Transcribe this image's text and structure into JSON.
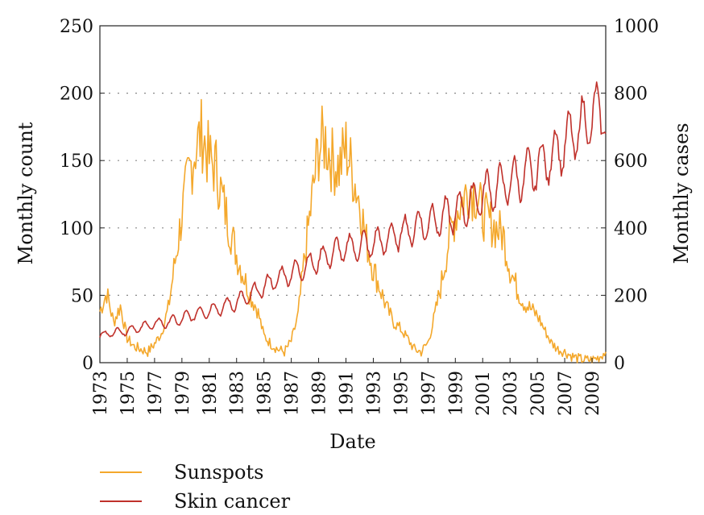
{
  "chart_data": {
    "type": "line",
    "xlabel": "Date",
    "ylabel": "Monthly count",
    "y2label": "Monthly cases",
    "xlim": [
      1973,
      2010
    ],
    "ylim": [
      0,
      250
    ],
    "y2lim": [
      0,
      1000
    ],
    "xticks": [
      "1973",
      "1975",
      "1977",
      "1979",
      "1981",
      "1983",
      "1985",
      "1987",
      "1989",
      "1991",
      "1993",
      "1995",
      "1997",
      "1999",
      "2001",
      "2003",
      "2005",
      "2007",
      "2009"
    ],
    "yticks": [
      "0",
      "50",
      "100",
      "150",
      "200",
      "250"
    ],
    "y2ticks": [
      "0",
      "200",
      "400",
      "600",
      "800",
      "1000"
    ],
    "grid": "horizontal dotted",
    "legend_position": "below",
    "series": [
      {
        "name": "Sunspots",
        "axis": "left",
        "color": "#f4a82c",
        "x": [
          1973.0,
          1973.5,
          1974.0,
          1974.5,
          1975.0,
          1975.5,
          1976.0,
          1976.5,
          1977.0,
          1977.5,
          1978.0,
          1978.5,
          1979.0,
          1979.5,
          1980.0,
          1980.5,
          1981.0,
          1981.5,
          1982.0,
          1982.5,
          1983.0,
          1983.5,
          1984.0,
          1984.5,
          1985.0,
          1985.5,
          1986.0,
          1986.5,
          1987.0,
          1987.5,
          1988.0,
          1988.5,
          1989.0,
          1989.5,
          1990.0,
          1990.5,
          1991.0,
          1991.5,
          1992.0,
          1992.5,
          1993.0,
          1993.5,
          1994.0,
          1994.5,
          1995.0,
          1995.5,
          1996.0,
          1996.5,
          1997.0,
          1997.5,
          1998.0,
          1998.5,
          1999.0,
          1999.5,
          2000.0,
          2000.5,
          2001.0,
          2001.5,
          2002.0,
          2002.5,
          2003.0,
          2003.5,
          2004.0,
          2004.5,
          2005.0,
          2005.5,
          2006.0,
          2006.5,
          2007.0,
          2007.5,
          2008.0,
          2008.5,
          2009.0,
          2009.5,
          2010.0
        ],
        "values": [
          38,
          52,
          30,
          42,
          18,
          12,
          10,
          8,
          14,
          22,
          40,
          75,
          110,
          140,
          160,
          170,
          150,
          145,
          120,
          100,
          80,
          65,
          50,
          40,
          20,
          14,
          10,
          8,
          16,
          35,
          80,
          120,
          160,
          165,
          150,
          145,
          160,
          140,
          120,
          90,
          70,
          55,
          40,
          30,
          25,
          18,
          10,
          8,
          15,
          35,
          60,
          90,
          110,
          120,
          130,
          125,
          110,
          105,
          100,
          95,
          70,
          55,
          45,
          40,
          35,
          25,
          15,
          10,
          8,
          5,
          3,
          2,
          2,
          4,
          8
        ]
      },
      {
        "name": "Skin cancer",
        "axis": "right",
        "color": "#c0312b",
        "x": [
          1973.0,
          1974.0,
          1975.0,
          1976.0,
          1977.0,
          1978.0,
          1979.0,
          1980.0,
          1981.0,
          1982.0,
          1983.0,
          1984.0,
          1985.0,
          1986.0,
          1987.0,
          1988.0,
          1989.0,
          1990.0,
          1991.0,
          1992.0,
          1993.0,
          1994.0,
          1995.0,
          1996.0,
          1997.0,
          1998.0,
          1999.0,
          2000.0,
          2001.0,
          2002.0,
          2003.0,
          2004.0,
          2005.0,
          2006.0,
          2007.0,
          2008.0,
          2009.0,
          2010.0
        ],
        "values": [
          80,
          90,
          95,
          105,
          115,
          120,
          130,
          145,
          155,
          165,
          180,
          200,
          225,
          250,
          265,
          285,
          305,
          325,
          340,
          345,
          355,
          365,
          385,
          400,
          415,
          430,
          445,
          470,
          500,
          520,
          535,
          555,
          580,
          610,
          650,
          690,
          730,
          760
        ],
        "amplitude": [
          10,
          12,
          14,
          15,
          16,
          18,
          20,
          20,
          22,
          24,
          26,
          28,
          30,
          32,
          34,
          36,
          40,
          42,
          44,
          45,
          46,
          48,
          50,
          52,
          56,
          58,
          60,
          62,
          66,
          70,
          70,
          72,
          76,
          80,
          84,
          88,
          92,
          94
        ]
      }
    ]
  }
}
